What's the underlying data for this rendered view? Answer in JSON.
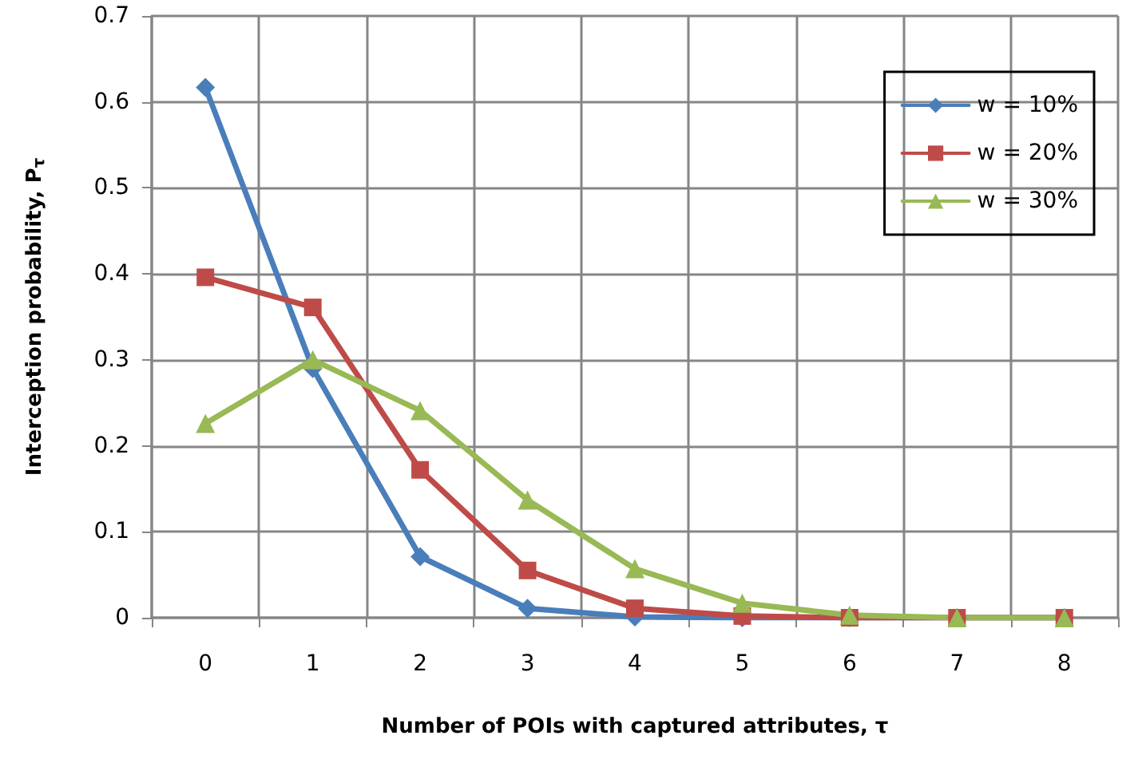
{
  "chart_data": {
    "type": "line",
    "xlabel": "Number of POIs with captured attributes, τ",
    "ylabel": "Interception probability, P$_{τ}$",
    "categories": [
      "0",
      "1",
      "2",
      "3",
      "4",
      "5",
      "6",
      "7",
      "8"
    ],
    "series": [
      {
        "name": "w = 10%",
        "color": "#4a7ebb",
        "marker": "diamond",
        "values": [
          0.617,
          0.29,
          0.071,
          0.011,
          0.001,
          0,
          0,
          0,
          0
        ]
      },
      {
        "name": "w = 20%",
        "color": "#be4b48",
        "marker": "square",
        "values": [
          0.396,
          0.361,
          0.172,
          0.055,
          0.011,
          0.002,
          0,
          0,
          0
        ]
      },
      {
        "name": "w = 30%",
        "color": "#98b954",
        "marker": "triangle",
        "values": [
          0.226,
          0.3,
          0.241,
          0.137,
          0.057,
          0.017,
          0.003,
          0,
          0
        ]
      }
    ],
    "ylim": [
      0,
      0.7
    ],
    "yticks": [
      0,
      0.1,
      0.2,
      0.3,
      0.4,
      0.5,
      0.6,
      0.7
    ],
    "grid": true,
    "legend": "top right",
    "line_style": "solid"
  }
}
